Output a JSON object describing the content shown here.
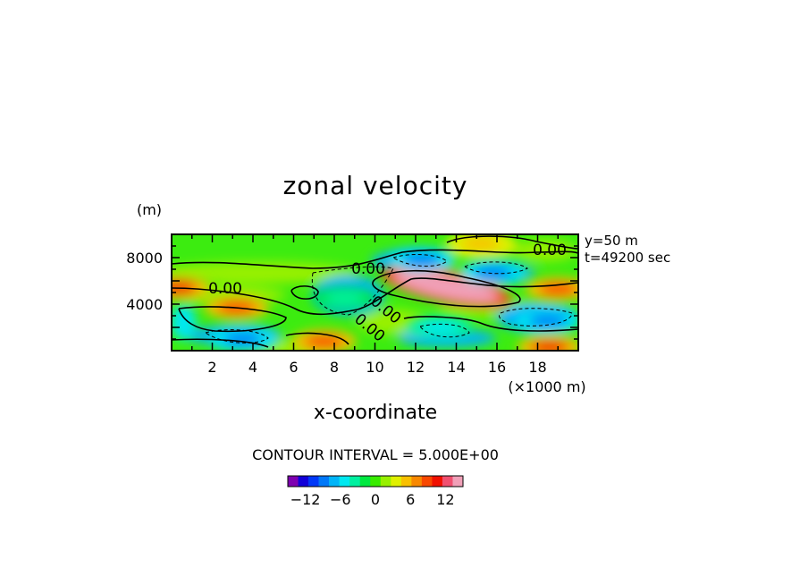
{
  "chart_data": {
    "type": "heatmap",
    "title": "zonal velocity",
    "xlabel": "x-coordinate",
    "x_unit": "(×1000 m)",
    "y_unit": "(m)",
    "xlim": [
      0,
      20
    ],
    "ylim": [
      0,
      10000
    ],
    "x_ticks": [
      "2",
      "4",
      "6",
      "8",
      "10",
      "12",
      "14",
      "16",
      "18"
    ],
    "y_ticks": [
      "4000",
      "8000"
    ],
    "annotations": [
      "y=50 m",
      "t=49200 sec"
    ],
    "contour_labels": [
      "0.00",
      "0.00",
      "0.00",
      "0.00",
      "0.00"
    ],
    "contour_interval_text": "CONTOUR INTERVAL = 5.000E+00",
    "colorbar": {
      "range": [
        -15,
        15
      ],
      "tick_labels": [
        "−12",
        "−6",
        "0",
        "6",
        "12"
      ],
      "colors": [
        "#7e00b0",
        "#1200d8",
        "#0038f8",
        "#0078f8",
        "#00b4f8",
        "#00e8f0",
        "#00f0a0",
        "#00e840",
        "#38ec00",
        "#98f000",
        "#e0f000",
        "#f8c000",
        "#f88800",
        "#f84800",
        "#f01000",
        "#f05070",
        "#f0a0b8"
      ]
    },
    "features": [
      {
        "x": 13.5,
        "y": 5500,
        "value": 14,
        "sign": "positive"
      },
      {
        "x": 19.0,
        "y": 5300,
        "value": 9,
        "sign": "positive"
      },
      {
        "x": 3.2,
        "y": 3700,
        "value": 9,
        "sign": "positive"
      },
      {
        "x": 0.3,
        "y": 5400,
        "value": 10,
        "sign": "positive"
      },
      {
        "x": 7.5,
        "y": 800,
        "value": 9,
        "sign": "positive"
      },
      {
        "x": 18.6,
        "y": 300,
        "value": 10,
        "sign": "positive"
      },
      {
        "x": 15.2,
        "y": 9200,
        "value": 6,
        "sign": "positive"
      },
      {
        "x": 15.8,
        "y": 6700,
        "value": -9,
        "sign": "negative"
      },
      {
        "x": 12.3,
        "y": 7800,
        "value": -8,
        "sign": "negative"
      },
      {
        "x": 18.5,
        "y": 2600,
        "value": -9,
        "sign": "negative"
      },
      {
        "x": 3.5,
        "y": 1000,
        "value": -8,
        "sign": "negative"
      },
      {
        "x": 13.2,
        "y": 2000,
        "value": -6,
        "sign": "negative"
      },
      {
        "x": 8.5,
        "y": 4500,
        "value": -4,
        "sign": "negative"
      }
    ]
  }
}
